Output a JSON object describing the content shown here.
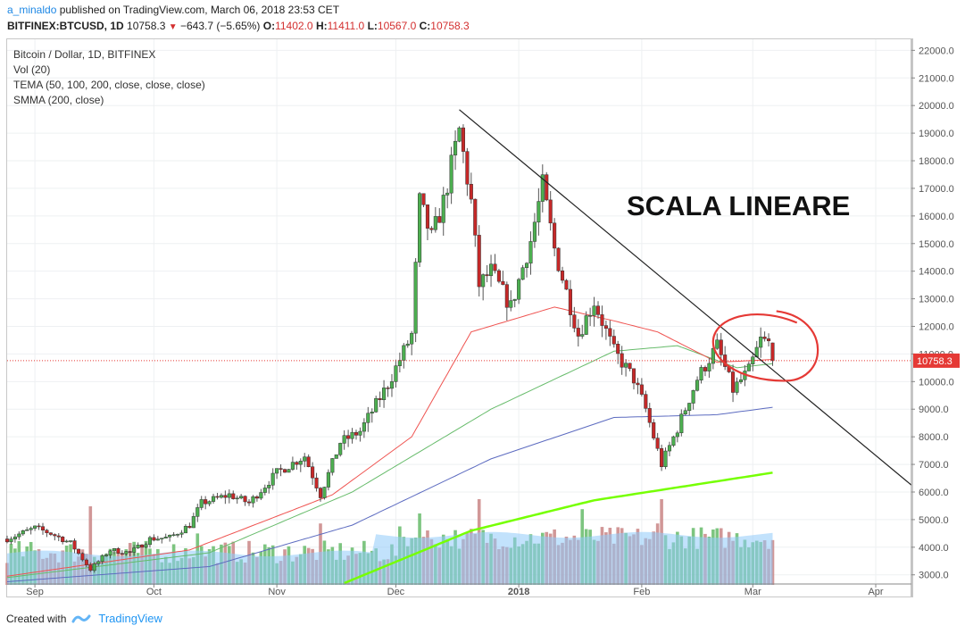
{
  "header": {
    "author": "a_minaldo",
    "published_text": "published on TradingView.com, March 06, 2018 23:53 CET",
    "symbol": "BITFINEX:BTCUSD, 1D",
    "last": "10758.3",
    "change": "−643.7 (−5.65%)",
    "o_label": "O:",
    "o_value": "11402.0",
    "h_label": "H:",
    "h_value": "11411.0",
    "l_label": "L:",
    "l_value": "10567.0",
    "c_label": "C:",
    "c_value": "10758.3"
  },
  "legend": {
    "title": "Bitcoin / Dollar, 1D, BITFINEX",
    "vol": "Vol (20)",
    "tema": "TEMA (50, 100, 200, close, close, close)",
    "smma": "SMMA (200, close)"
  },
  "annotation": "SCALA LINEARE",
  "price_label": "10758.3",
  "footer": {
    "created_with": "Created with",
    "brand": "TradingView"
  },
  "colors": {
    "up": "#4caf50",
    "down": "#c62828",
    "tema50": "#ef5350",
    "tema100": "#66bb6a",
    "tema200": "#5c6bc0",
    "smma": "#76ff03",
    "vol_ma": "#90caf9",
    "circle": "#e53935"
  },
  "chart_data": {
    "type": "candlestick",
    "y_axis": {
      "min": 2700,
      "max": 22400,
      "ticks": [
        3000,
        4000,
        5000,
        6000,
        7000,
        8000,
        9000,
        10000,
        11000,
        12000,
        13000,
        14000,
        15000,
        16000,
        17000,
        18000,
        19000,
        20000,
        21000,
        22000
      ]
    },
    "x_axis": {
      "start": "2017-08-25",
      "end": "2018-04-10",
      "ticks": [
        {
          "label": "Sep",
          "date": "2017-09-01"
        },
        {
          "label": "Oct",
          "date": "2017-10-01"
        },
        {
          "label": "Nov",
          "date": "2017-11-01"
        },
        {
          "label": "Dec",
          "date": "2017-12-01"
        },
        {
          "label": "2018",
          "date": "2018-01-01"
        },
        {
          "label": "Feb",
          "date": "2018-02-01"
        },
        {
          "label": "Mar",
          "date": "2018-03-01"
        },
        {
          "label": "Apr",
          "date": "2018-04-01"
        }
      ]
    },
    "close_anchors": [
      [
        "2017-08-25",
        4300
      ],
      [
        "2017-09-01",
        4700
      ],
      [
        "2017-09-05",
        4500
      ],
      [
        "2017-09-10",
        4150
      ],
      [
        "2017-09-15",
        3200
      ],
      [
        "2017-09-20",
        3900
      ],
      [
        "2017-09-25",
        3800
      ],
      [
        "2017-09-30",
        4300
      ],
      [
        "2017-10-05",
        4350
      ],
      [
        "2017-10-10",
        4800
      ],
      [
        "2017-10-13",
        5600
      ],
      [
        "2017-10-20",
        5900
      ],
      [
        "2017-10-25",
        5600
      ],
      [
        "2017-11-01",
        6700
      ],
      [
        "2017-11-08",
        7300
      ],
      [
        "2017-11-12",
        5900
      ],
      [
        "2017-11-17",
        7800
      ],
      [
        "2017-11-22",
        8200
      ],
      [
        "2017-11-29",
        9900
      ],
      [
        "2017-12-05",
        11700
      ],
      [
        "2017-12-07",
        16500
      ],
      [
        "2017-12-10",
        15200
      ],
      [
        "2017-12-13",
        16500
      ],
      [
        "2017-12-17",
        19100
      ],
      [
        "2017-12-20",
        16500
      ],
      [
        "2017-12-22",
        13500
      ],
      [
        "2017-12-25",
        14000
      ],
      [
        "2017-12-30",
        12700
      ],
      [
        "2018-01-04",
        15100
      ],
      [
        "2018-01-07",
        17100
      ],
      [
        "2018-01-10",
        14800
      ],
      [
        "2018-01-16",
        11700
      ],
      [
        "2018-01-20",
        12900
      ],
      [
        "2018-01-25",
        11100
      ],
      [
        "2018-01-30",
        10100
      ],
      [
        "2018-02-02",
        9000
      ],
      [
        "2018-02-06",
        7000
      ],
      [
        "2018-02-10",
        8300
      ],
      [
        "2018-02-15",
        10100
      ],
      [
        "2018-02-20",
        11300
      ],
      [
        "2018-02-24",
        9700
      ],
      [
        "2018-02-28",
        10400
      ],
      [
        "2018-03-03",
        11500
      ],
      [
        "2018-03-05",
        11400
      ],
      [
        "2018-03-06",
        10758.3
      ]
    ],
    "tema50": [
      [
        "2017-08-25",
        2950
      ],
      [
        "2017-10-10",
        3900
      ],
      [
        "2017-11-15",
        5900
      ],
      [
        "2017-12-05",
        8000
      ],
      [
        "2017-12-20",
        11800
      ],
      [
        "2018-01-10",
        12700
      ],
      [
        "2018-01-25",
        12200
      ],
      [
        "2018-02-05",
        11800
      ],
      [
        "2018-02-20",
        10700
      ],
      [
        "2018-03-06",
        10800
      ]
    ],
    "tema100": [
      [
        "2017-08-25",
        2900
      ],
      [
        "2017-10-15",
        3800
      ],
      [
        "2017-11-20",
        6000
      ],
      [
        "2017-12-25",
        9000
      ],
      [
        "2018-01-25",
        11100
      ],
      [
        "2018-02-10",
        11300
      ],
      [
        "2018-02-25",
        10500
      ],
      [
        "2018-03-06",
        10650
      ]
    ],
    "tema200": [
      [
        "2017-08-25",
        2750
      ],
      [
        "2017-10-15",
        3300
      ],
      [
        "2017-11-20",
        4800
      ],
      [
        "2017-12-25",
        7200
      ],
      [
        "2018-01-25",
        8700
      ],
      [
        "2018-02-20",
        8800
      ],
      [
        "2018-03-06",
        9070
      ]
    ],
    "smma200": [
      [
        "2017-11-18",
        2700
      ],
      [
        "2017-12-20",
        4600
      ],
      [
        "2018-01-20",
        5700
      ],
      [
        "2018-03-06",
        6700
      ]
    ],
    "trendline": [
      [
        "2017-12-17",
        19850
      ],
      [
        "2018-04-10",
        6250
      ]
    ],
    "volume_spikes": [
      [
        "2017-09-15",
        3.5
      ],
      [
        "2017-10-12",
        1.6
      ],
      [
        "2017-11-12",
        2.3
      ],
      [
        "2017-12-07",
        3.0
      ],
      [
        "2017-12-18",
        1.2
      ],
      [
        "2017-12-22",
        4.0
      ],
      [
        "2018-01-17",
        3.3
      ],
      [
        "2018-02-06",
        4.0
      ],
      [
        "2018-02-05",
        2.3
      ]
    ]
  }
}
